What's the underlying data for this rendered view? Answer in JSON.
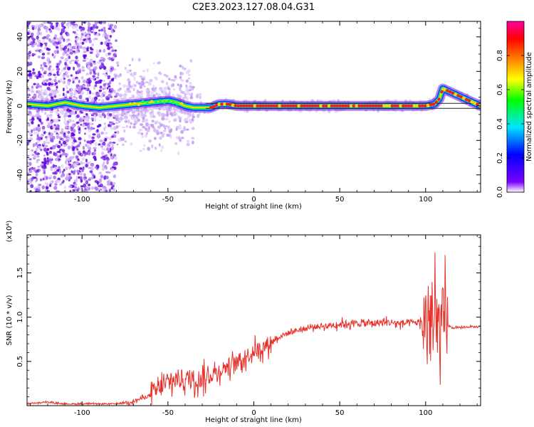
{
  "title": "C2E3.2023.127.08.04.G31",
  "chart_data": [
    {
      "type": "heatmap",
      "xlabel": "Height of straight line (km)",
      "ylabel": "Frequency (Hz)",
      "xlim": [
        -132,
        132
      ],
      "ylim": [
        -50,
        49
      ],
      "xticks": [
        -100,
        -50,
        0,
        50,
        100
      ],
      "yticks": [
        -40,
        -20,
        0,
        20,
        40
      ],
      "colorbar": {
        "label": "Normalized spectral amplitude",
        "range": [
          0,
          1
        ],
        "ticks": [
          "0.0",
          "0.2",
          "0.4",
          "0.6",
          "0.8"
        ],
        "tick_values": [
          0.0,
          0.2,
          0.4,
          0.6,
          0.8
        ],
        "colors": [
          "#ffffff",
          "#7b00ff",
          "#0000ff",
          "#00e5ff",
          "#00ff00",
          "#ffff00",
          "#ff7f00",
          "#ff0000",
          "#ff00a0"
        ]
      },
      "ridge": {
        "x": [
          -132,
          -120,
          -110,
          -100,
          -90,
          -80,
          -70,
          -60,
          -50,
          -45,
          -40,
          -35,
          -30,
          -25,
          -20,
          -15,
          -10,
          -5,
          0,
          20,
          50,
          80,
          100,
          105,
          108,
          110,
          132
        ],
        "freq": [
          1,
          0,
          2,
          0,
          -1,
          0,
          1,
          2,
          3,
          2,
          0,
          -1,
          -1,
          -1,
          1,
          1,
          0,
          0,
          0,
          0,
          0,
          0,
          0,
          1,
          4,
          10,
          0
        ]
      }
    },
    {
      "type": "line",
      "xlabel": "Height of straight line (km)",
      "ylabel": "SNR (10 * v/v)",
      "y_multiplier": "(x10⁴)",
      "xlim": [
        -132,
        132
      ],
      "ylim": [
        0,
        1.93
      ],
      "xticks": [
        -100,
        -50,
        0,
        50,
        100
      ],
      "yticks": [
        0.5,
        1.0,
        1.5
      ],
      "ytick_labels": [
        "0.5",
        "1.0",
        "1.5"
      ],
      "line_color": "#e8302a",
      "series": [
        {
          "x": [
            -132,
            -120,
            -110,
            -100,
            -90,
            -80,
            -70,
            -60,
            -55,
            -50,
            -45,
            -40,
            -35,
            -30,
            -25,
            -20,
            -15,
            -10,
            -5,
            0,
            5,
            10,
            15,
            20,
            25,
            30,
            35,
            40,
            45,
            50,
            55,
            60,
            65,
            70,
            75,
            80,
            85,
            90,
            95,
            100,
            102,
            104,
            106,
            108,
            110,
            112,
            115,
            120,
            125,
            132
          ],
          "y": [
            0.02,
            0.04,
            0.02,
            0.02,
            0.02,
            0.02,
            0.05,
            0.12,
            0.2,
            0.25,
            0.3,
            0.3,
            0.3,
            0.3,
            0.35,
            0.4,
            0.45,
            0.48,
            0.55,
            0.62,
            0.65,
            0.72,
            0.78,
            0.82,
            0.85,
            0.87,
            0.89,
            0.9,
            0.91,
            0.92,
            0.93,
            0.93,
            0.93,
            0.93,
            0.94,
            0.94,
            0.93,
            0.93,
            0.94,
            0.94,
            0.93,
            0.92,
            0.9,
            0.9,
            0.92,
            0.92,
            0.88,
            0.88,
            0.89,
            0.89
          ]
        }
      ]
    }
  ]
}
